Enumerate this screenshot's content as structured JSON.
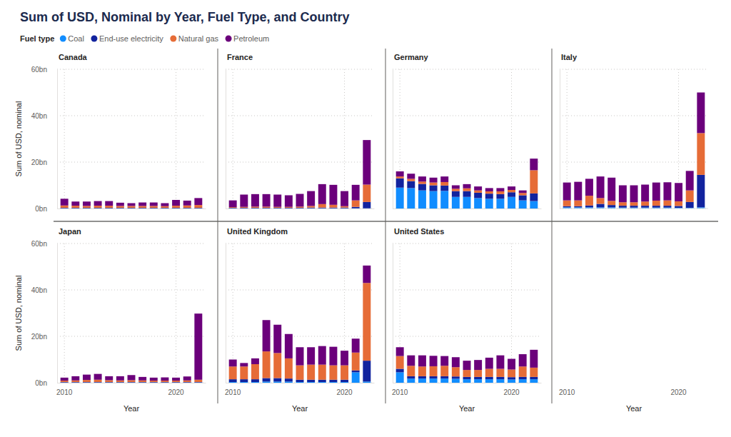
{
  "title": "Sum of USD, Nominal by Year, Fuel Type, and Country",
  "legend_title": "Fuel type",
  "chart_data": [
    {
      "type": "bar",
      "title": "Canada",
      "y_label": "Sum of USD, nominal",
      "stacked": true,
      "grid": true,
      "legend": "top-left",
      "tick_labels": "y",
      "categories": [
        "2010",
        null,
        null,
        null,
        null,
        null,
        null,
        null,
        null,
        null,
        "2020",
        null,
        null
      ],
      "ylim": [
        0,
        60
      ],
      "yticks": [
        {
          "value": 0,
          "label": "0bn"
        },
        {
          "value": 20,
          "label": "20bn"
        },
        {
          "value": 40,
          "label": "40bn"
        },
        {
          "value": 60,
          "label": "60bn"
        }
      ],
      "series": [
        {
          "name": "Coal",
          "color": "#118dff",
          "values": [
            0.1,
            0.1,
            0.1,
            0.1,
            0.1,
            0.1,
            0.1,
            0.1,
            0.1,
            0.1,
            0.1,
            0.1,
            0.1
          ]
        },
        {
          "name": "End-use electricity",
          "color": "#12239e",
          "values": [
            0.2,
            0.2,
            0.2,
            0.2,
            0.2,
            0.2,
            0.2,
            0.2,
            0.2,
            0.2,
            0.2,
            0.2,
            0.2
          ]
        },
        {
          "name": "Natural gas",
          "color": "#e66c37",
          "values": [
            1.0,
            0.9,
            0.8,
            0.9,
            0.9,
            0.8,
            0.8,
            0.8,
            0.8,
            0.7,
            0.9,
            1.0,
            1.2
          ]
        },
        {
          "name": "Petroleum",
          "color": "#6b007b",
          "values": [
            2.9,
            1.8,
            1.9,
            2.0,
            2.0,
            1.4,
            1.2,
            1.5,
            1.5,
            1.3,
            2.5,
            2.1,
            3.0
          ]
        }
      ]
    },
    {
      "type": "bar",
      "title": "France",
      "stacked": true,
      "grid": true,
      "tick_labels": false,
      "categories": [
        "2010",
        null,
        null,
        null,
        null,
        null,
        null,
        null,
        null,
        null,
        "2020",
        null,
        null
      ],
      "ylim": [
        0,
        60
      ],
      "yticks": [
        {
          "value": 0,
          "label": "0bn"
        },
        {
          "value": 20,
          "label": "20bn"
        },
        {
          "value": 40,
          "label": "40bn"
        },
        {
          "value": 60,
          "label": "60bn"
        }
      ],
      "series": [
        {
          "name": "Coal",
          "color": "#118dff",
          "values": [
            0.1,
            0.1,
            0.1,
            0.1,
            0.1,
            0.1,
            0.1,
            0.1,
            0.1,
            0.1,
            0.1,
            0.1,
            0.1
          ]
        },
        {
          "name": "End-use electricity",
          "color": "#12239e",
          "values": [
            0.2,
            0.2,
            0.2,
            0.2,
            0.2,
            0.2,
            0.2,
            0.3,
            0.3,
            0.3,
            0.3,
            0.6,
            2.7
          ]
        },
        {
          "name": "Natural gas",
          "color": "#e66c37",
          "values": [
            0.3,
            0.4,
            0.5,
            0.5,
            0.4,
            0.4,
            0.5,
            0.7,
            1.5,
            1.2,
            0.6,
            2.8,
            7.5
          ]
        },
        {
          "name": "Petroleum",
          "color": "#6b007b",
          "values": [
            2.9,
            5.3,
            5.4,
            5.4,
            5.3,
            5.0,
            5.5,
            6.4,
            8.6,
            8.6,
            6.5,
            6.7,
            19.2
          ]
        }
      ]
    },
    {
      "type": "bar",
      "title": "Germany",
      "stacked": true,
      "grid": true,
      "tick_labels": false,
      "categories": [
        "2010",
        null,
        null,
        null,
        null,
        null,
        null,
        null,
        null,
        null,
        "2020",
        null,
        null
      ],
      "ylim": [
        0,
        60
      ],
      "yticks": [
        {
          "value": 0,
          "label": "0bn"
        },
        {
          "value": 20,
          "label": "20bn"
        },
        {
          "value": 40,
          "label": "40bn"
        },
        {
          "value": 60,
          "label": "60bn"
        }
      ],
      "series": [
        {
          "name": "Coal",
          "color": "#118dff",
          "values": [
            9.0,
            8.8,
            7.8,
            7.5,
            7.6,
            5.0,
            5.0,
            4.5,
            4.2,
            4.2,
            5.0,
            3.5,
            3.2
          ]
        },
        {
          "name": "End-use electricity",
          "color": "#12239e",
          "values": [
            4.0,
            3.0,
            2.8,
            2.5,
            2.3,
            2.5,
            2.5,
            2.3,
            2.2,
            2.0,
            2.0,
            2.2,
            3.3
          ]
        },
        {
          "name": "Natural gas",
          "color": "#e66c37",
          "values": [
            0.8,
            1.0,
            1.0,
            1.2,
            1.5,
            1.0,
            1.2,
            1.0,
            1.0,
            1.2,
            1.0,
            1.0,
            10.0
          ]
        },
        {
          "name": "Petroleum",
          "color": "#6b007b",
          "values": [
            2.2,
            2.2,
            2.2,
            2.1,
            2.4,
            1.5,
            1.8,
            1.7,
            1.4,
            1.4,
            1.5,
            1.1,
            5.0
          ]
        }
      ]
    },
    {
      "type": "bar",
      "title": "Italy",
      "x_label": "Year",
      "stacked": true,
      "grid": true,
      "tick_labels": "x",
      "categories": [
        "2010",
        null,
        null,
        null,
        null,
        null,
        null,
        null,
        null,
        null,
        "2020",
        null,
        null
      ],
      "ylim": [
        0,
        60
      ],
      "yticks": [
        {
          "value": 0,
          "label": "0bn"
        },
        {
          "value": 20,
          "label": "20bn"
        },
        {
          "value": 40,
          "label": "40bn"
        },
        {
          "value": 60,
          "label": "60bn"
        }
      ],
      "series": [
        {
          "name": "Coal",
          "color": "#118dff",
          "values": [
            0.5,
            0.5,
            0.5,
            0.5,
            0.5,
            0.4,
            0.4,
            0.4,
            0.4,
            0.4,
            0.3,
            0.3,
            0.5
          ]
        },
        {
          "name": "End-use electricity",
          "color": "#12239e",
          "values": [
            0.5,
            0.5,
            0.8,
            1.5,
            1.0,
            0.8,
            0.8,
            0.8,
            0.8,
            0.8,
            0.8,
            2.5,
            14.0
          ]
        },
        {
          "name": "Natural gas",
          "color": "#e66c37",
          "values": [
            2.5,
            2.5,
            4.2,
            2.5,
            1.8,
            1.5,
            1.5,
            1.8,
            2.2,
            2.3,
            2.0,
            5.0,
            18.0
          ]
        },
        {
          "name": "Petroleum",
          "color": "#6b007b",
          "values": [
            7.7,
            8.0,
            7.3,
            9.3,
            10.0,
            7.3,
            7.3,
            7.3,
            7.8,
            7.8,
            7.9,
            8.4,
            17.5
          ]
        }
      ]
    },
    {
      "type": "bar",
      "title": "Japan",
      "x_label": "Year",
      "y_label": "Sum of USD, nominal",
      "stacked": true,
      "grid": true,
      "categories": [
        "2010",
        null,
        null,
        null,
        null,
        null,
        null,
        null,
        null,
        null,
        "2020",
        null,
        null
      ],
      "ylim": [
        0,
        60
      ],
      "yticks": [
        {
          "value": 0,
          "label": "0bn"
        },
        {
          "value": 20,
          "label": "20bn"
        },
        {
          "value": 40,
          "label": "40bn"
        },
        {
          "value": 60,
          "label": "60bn"
        }
      ],
      "series": [
        {
          "name": "Coal",
          "color": "#118dff",
          "values": [
            0.1,
            0.1,
            0.1,
            0.1,
            0.1,
            0.1,
            0.1,
            0.1,
            0.1,
            0.1,
            0.1,
            0.1,
            0.1
          ]
        },
        {
          "name": "End-use electricity",
          "color": "#12239e",
          "values": [
            0.2,
            0.2,
            0.2,
            0.2,
            0.2,
            0.2,
            0.2,
            0.2,
            0.2,
            0.2,
            0.2,
            0.2,
            0.2
          ]
        },
        {
          "name": "Natural gas",
          "color": "#e66c37",
          "values": [
            0.6,
            0.7,
            0.9,
            1.0,
            0.8,
            0.7,
            0.8,
            0.7,
            0.6,
            0.6,
            0.6,
            0.7,
            1.0
          ]
        },
        {
          "name": "Petroleum",
          "color": "#6b007b",
          "values": [
            1.3,
            1.8,
            2.3,
            2.5,
            1.7,
            1.8,
            2.2,
            1.5,
            1.3,
            1.4,
            1.3,
            1.7,
            28.5
          ]
        }
      ]
    },
    {
      "type": "bar",
      "title": "United Kingdom",
      "x_label": "Year",
      "stacked": true,
      "grid": true,
      "tick_labels": "x",
      "categories": [
        "2010",
        null,
        null,
        null,
        null,
        null,
        null,
        null,
        null,
        null,
        "2020",
        null,
        null
      ],
      "ylim": [
        0,
        60
      ],
      "yticks": [
        {
          "value": 0,
          "label": "0bn"
        },
        {
          "value": 20,
          "label": "20bn"
        },
        {
          "value": 40,
          "label": "40bn"
        },
        {
          "value": 60,
          "label": "60bn"
        }
      ],
      "series": [
        {
          "name": "Coal",
          "color": "#118dff",
          "values": [
            0.3,
            0.3,
            0.3,
            0.5,
            0.5,
            0.5,
            0.3,
            0.3,
            0.3,
            0.3,
            0.3,
            4.5,
            0.5
          ]
        },
        {
          "name": "End-use electricity",
          "color": "#12239e",
          "values": [
            1.2,
            1.2,
            1.2,
            1.5,
            1.5,
            1.3,
            1.0,
            1.0,
            1.0,
            1.0,
            1.0,
            0.8,
            9.0
          ]
        },
        {
          "name": "Natural gas",
          "color": "#e66c37",
          "values": [
            5.5,
            5.5,
            6.5,
            11.5,
            10.8,
            8.7,
            6.2,
            6.5,
            6.5,
            6.2,
            6.2,
            7.7,
            33.5
          ]
        },
        {
          "name": "Petroleum",
          "color": "#6b007b",
          "values": [
            3.0,
            1.5,
            2.5,
            13.5,
            12.2,
            10.5,
            7.8,
            7.5,
            8.0,
            8.0,
            6.3,
            6.0,
            7.5
          ]
        }
      ]
    },
    {
      "type": "bar",
      "title": "United States",
      "x_label": "Year",
      "stacked": true,
      "grid": true,
      "tick_labels": "x",
      "categories": [
        "2010",
        null,
        null,
        null,
        null,
        null,
        null,
        null,
        null,
        null,
        "2020",
        null,
        null
      ],
      "ylim": [
        0,
        60
      ],
      "yticks": [
        {
          "value": 0,
          "label": "0bn"
        },
        {
          "value": 20,
          "label": "20bn"
        },
        {
          "value": 40,
          "label": "40bn"
        },
        {
          "value": 60,
          "label": "60bn"
        }
      ],
      "series": [
        {
          "name": "Coal",
          "color": "#118dff",
          "values": [
            4.5,
            1.8,
            1.8,
            1.8,
            1.8,
            1.7,
            1.5,
            1.5,
            1.5,
            1.5,
            1.4,
            1.5,
            1.5
          ]
        },
        {
          "name": "End-use electricity",
          "color": "#12239e",
          "values": [
            1.5,
            1.0,
            1.0,
            1.0,
            1.0,
            1.0,
            1.0,
            1.0,
            1.0,
            1.0,
            1.0,
            1.0,
            1.0
          ]
        },
        {
          "name": "Natural gas",
          "color": "#e66c37",
          "values": [
            5.5,
            4.5,
            4.2,
            4.3,
            4.5,
            4.0,
            3.0,
            3.0,
            3.5,
            3.5,
            3.3,
            4.5,
            4.0
          ]
        },
        {
          "name": "Petroleum",
          "color": "#6b007b",
          "values": [
            3.8,
            4.5,
            4.8,
            4.5,
            4.2,
            4.3,
            4.0,
            4.3,
            4.8,
            5.8,
            4.6,
            5.3,
            7.7
          ]
        }
      ]
    }
  ]
}
